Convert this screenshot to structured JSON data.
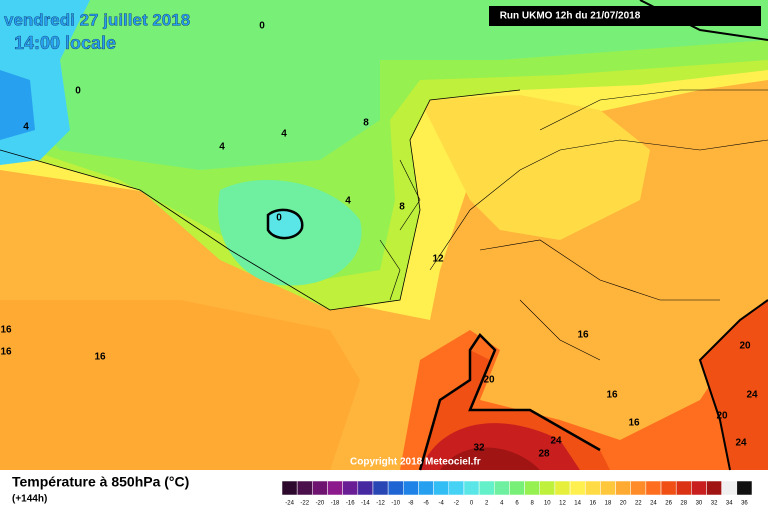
{
  "header": {
    "date": "vendredi 27 juillet 2018",
    "time": "14:00 locale",
    "run": "Run UKMO 12h du 21/07/2018"
  },
  "copyright": "Copyright 2018 Meteociel.fr",
  "footer": {
    "title": "Température à 850hPa (°C)",
    "lead": "(+144h)"
  },
  "contour_labels": [
    0,
    0,
    4,
    4,
    4,
    8,
    0,
    4,
    8,
    12,
    16,
    16,
    16,
    16,
    20,
    16,
    16,
    20,
    24,
    20,
    24,
    32,
    24,
    28
  ],
  "colorbar": {
    "labels": [
      -24,
      -22,
      -20,
      -18,
      -16,
      -14,
      -12,
      -10,
      -8,
      -6,
      -4,
      -2,
      0,
      2,
      4,
      6,
      8,
      10,
      12,
      14,
      16,
      18,
      20,
      22,
      24,
      26,
      28,
      30,
      32,
      34,
      36
    ],
    "colors": [
      "#2d0a2d",
      "#4b0f4b",
      "#6e1470",
      "#8c1a8c",
      "#6a1e96",
      "#4628a0",
      "#2846b4",
      "#1e64d2",
      "#1e82e6",
      "#28a0f0",
      "#32bef5",
      "#46d2f5",
      "#5ae6e6",
      "#64f0c8",
      "#6ef0a0",
      "#78f078",
      "#96f050",
      "#bef03c",
      "#e6f03c",
      "#fff050",
      "#ffdc46",
      "#ffc83c",
      "#ffaa32",
      "#ff8c28",
      "#ff6e1e",
      "#f05014",
      "#dc3214",
      "#c81e1e",
      "#a01414",
      "#f0f0f0",
      "#101010"
    ]
  }
}
